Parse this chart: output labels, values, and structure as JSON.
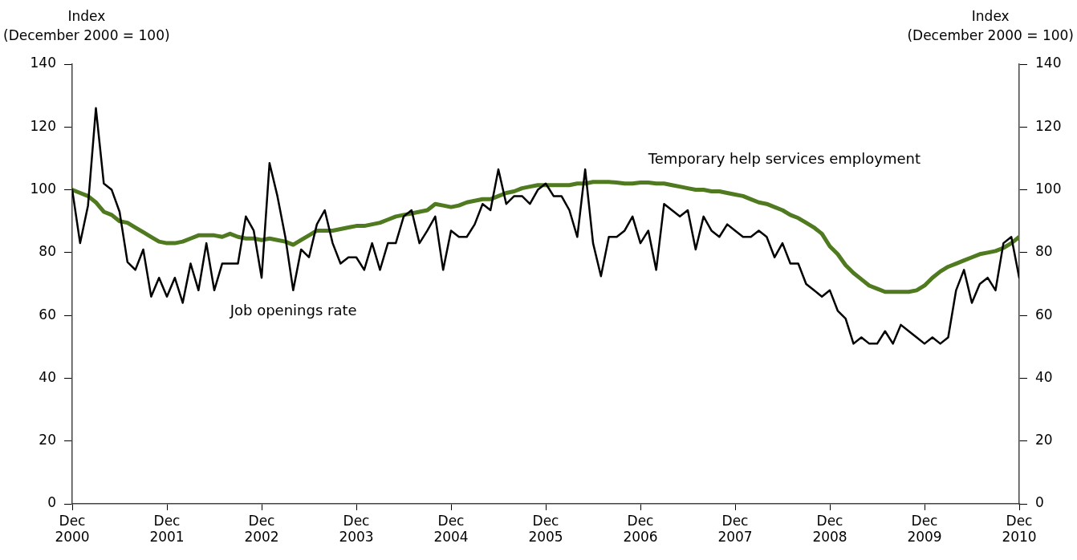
{
  "chart_data": {
    "type": "line",
    "ylabel": "Index\n(December 2000 = 100)",
    "y2label": "Index\n(December 2000 = 100)",
    "x": [
      "2000-12",
      "2001-01",
      "2001-02",
      "2001-03",
      "2001-04",
      "2001-05",
      "2001-06",
      "2001-07",
      "2001-08",
      "2001-09",
      "2001-10",
      "2001-11",
      "2001-12",
      "2002-01",
      "2002-02",
      "2002-03",
      "2002-04",
      "2002-05",
      "2002-06",
      "2002-07",
      "2002-08",
      "2002-09",
      "2002-10",
      "2002-11",
      "2002-12",
      "2003-01",
      "2003-02",
      "2003-03",
      "2003-04",
      "2003-05",
      "2003-06",
      "2003-07",
      "2003-08",
      "2003-09",
      "2003-10",
      "2003-11",
      "2003-12",
      "2004-01",
      "2004-02",
      "2004-03",
      "2004-04",
      "2004-05",
      "2004-06",
      "2004-07",
      "2004-08",
      "2004-09",
      "2004-10",
      "2004-11",
      "2004-12",
      "2005-01",
      "2005-02",
      "2005-03",
      "2005-04",
      "2005-05",
      "2005-06",
      "2005-07",
      "2005-08",
      "2005-09",
      "2005-10",
      "2005-11",
      "2005-12",
      "2006-01",
      "2006-02",
      "2006-03",
      "2006-04",
      "2006-05",
      "2006-06",
      "2006-07",
      "2006-08",
      "2006-09",
      "2006-10",
      "2006-11",
      "2006-12",
      "2007-01",
      "2007-02",
      "2007-03",
      "2007-04",
      "2007-05",
      "2007-06",
      "2007-07",
      "2007-08",
      "2007-09",
      "2007-10",
      "2007-11",
      "2007-12",
      "2008-01",
      "2008-02",
      "2008-03",
      "2008-04",
      "2008-05",
      "2008-06",
      "2008-07",
      "2008-08",
      "2008-09",
      "2008-10",
      "2008-11",
      "2008-12",
      "2009-01",
      "2009-02",
      "2009-03",
      "2009-04",
      "2009-05",
      "2009-06",
      "2009-07",
      "2009-08",
      "2009-09",
      "2009-10",
      "2009-11",
      "2009-12",
      "2010-01",
      "2010-02",
      "2010-03",
      "2010-04",
      "2010-05",
      "2010-06",
      "2010-07",
      "2010-08",
      "2010-09",
      "2010-10",
      "2010-11",
      "2010-12"
    ],
    "series": [
      {
        "name": "Job openings rate",
        "color": "#000000",
        "values": [
          100,
          83,
          95,
          126,
          102,
          100,
          93,
          77,
          74.5,
          81,
          66,
          72,
          66,
          72,
          64,
          76.5,
          68,
          83,
          68,
          76.5,
          76.5,
          76.5,
          91.5,
          87,
          72,
          108.5,
          98,
          85,
          68,
          81,
          78.5,
          89,
          93.5,
          83,
          76.5,
          78.5,
          78.5,
          74.5,
          83,
          74.5,
          83,
          83,
          91.5,
          93.5,
          83,
          87,
          91.5,
          74.5,
          87,
          85,
          85,
          89,
          95.5,
          93.5,
          106.5,
          95.5,
          98,
          98,
          95.5,
          100,
          102,
          98,
          98,
          93.5,
          85,
          106.5,
          83,
          72.5,
          85,
          85,
          87,
          91.5,
          83,
          87,
          74.5,
          95.5,
          93.5,
          91.5,
          93.5,
          81,
          91.5,
          87,
          85,
          89,
          87,
          85,
          85,
          87,
          85,
          78.5,
          83,
          76.5,
          76.5,
          70,
          68,
          66,
          68,
          61.5,
          59,
          51,
          53,
          51,
          51,
          55,
          51,
          57,
          55,
          53,
          51,
          53,
          51,
          53,
          68,
          74.5,
          64,
          70,
          72,
          68,
          83,
          85,
          72
        ]
      },
      {
        "name": "Temporary help services employment",
        "color": "#4f7a1f",
        "values": [
          100,
          99,
          98,
          96,
          93,
          92,
          90,
          89.5,
          88,
          86.5,
          85,
          83.5,
          83,
          83,
          83.5,
          84.5,
          85.5,
          85.5,
          85.5,
          85,
          86,
          85,
          84.5,
          84.5,
          84,
          84.5,
          84,
          83.5,
          82.5,
          84,
          85.5,
          87,
          87,
          87,
          87.5,
          88,
          88.5,
          88.5,
          89,
          89.5,
          90.5,
          91.5,
          92,
          92.5,
          93,
          93.5,
          95.5,
          95,
          94.5,
          95,
          96,
          96.5,
          97,
          97,
          98,
          99,
          99.5,
          100.5,
          101,
          101.5,
          101.5,
          101.5,
          101.5,
          101.5,
          102,
          102,
          102.5,
          102.5,
          102.5,
          102.3,
          102,
          102,
          102.3,
          102.3,
          102,
          102,
          101.5,
          101,
          100.5,
          100,
          100,
          99.5,
          99.5,
          99,
          98.5,
          98,
          97,
          96,
          95.5,
          94.5,
          93.5,
          92,
          91,
          89.5,
          88,
          86,
          82,
          79.5,
          76,
          73.5,
          71.5,
          69.5,
          68.5,
          67.5,
          67.5,
          67.5,
          67.5,
          68,
          69.5,
          72,
          74,
          75.5,
          76.5,
          77.5,
          78.5,
          79.5,
          80,
          80.5,
          81.5,
          83,
          85
        ]
      }
    ],
    "xlim": [
      "2000-12",
      "2010-12"
    ],
    "xticks": [
      {
        "value": "2000-12",
        "label": "Dec\n2000"
      },
      {
        "value": "2001-12",
        "label": "Dec\n2001"
      },
      {
        "value": "2002-12",
        "label": "Dec\n2002"
      },
      {
        "value": "2003-12",
        "label": "Dec\n2003"
      },
      {
        "value": "2004-12",
        "label": "Dec\n2004"
      },
      {
        "value": "2005-12",
        "label": "Dec\n2005"
      },
      {
        "value": "2006-12",
        "label": "Dec\n2006"
      },
      {
        "value": "2007-12",
        "label": "Dec\n2007"
      },
      {
        "value": "2008-12",
        "label": "Dec\n2008"
      },
      {
        "value": "2009-12",
        "label": "Dec\n2009"
      },
      {
        "value": "2010-12",
        "label": "Dec\n2010"
      }
    ],
    "ylim": [
      0,
      140
    ],
    "yticks": [
      0,
      20,
      40,
      60,
      80,
      100,
      120,
      140
    ],
    "y2lim": [
      0,
      140
    ],
    "y2ticks": [
      0,
      20,
      40,
      60,
      80,
      100,
      120,
      140
    ],
    "grid": false,
    "legend": false,
    "marker": "none",
    "line_style": "solid"
  }
}
